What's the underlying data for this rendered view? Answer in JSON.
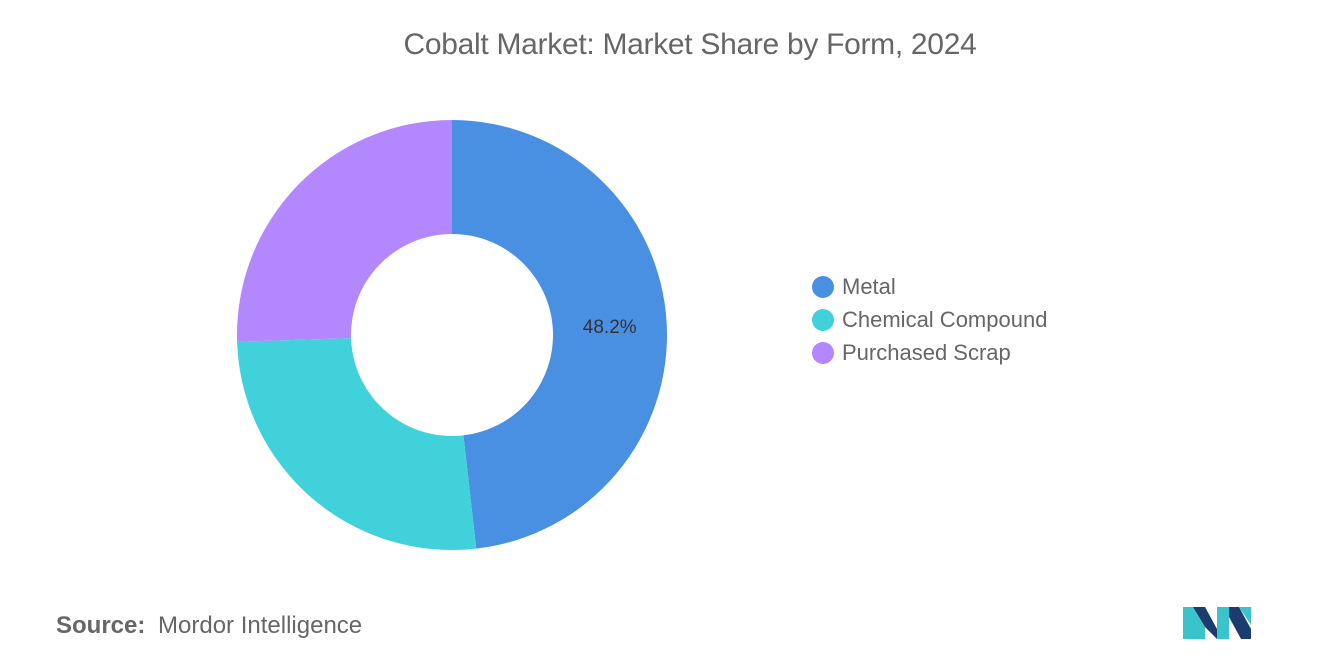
{
  "chart_data": {
    "type": "pie",
    "title": "Cobalt Market: Market Share by Form, 2024",
    "categories": [
      "Metal",
      "Chemical Compound",
      "Purchased Scrap"
    ],
    "values": [
      48.2,
      26.3,
      25.5
    ],
    "colors": [
      "#4a90e2",
      "#40d1db",
      "#b388ff"
    ],
    "data_labels": [
      "48.2%",
      "",
      ""
    ],
    "donut": true,
    "legend_position": "right"
  },
  "source": {
    "prefix": "Source:",
    "text": "Mordor Intelligence"
  },
  "logo": {
    "icon": "mordor-intelligence-logo",
    "colors": [
      "#1a3d6e",
      "#3ac3c9"
    ]
  }
}
